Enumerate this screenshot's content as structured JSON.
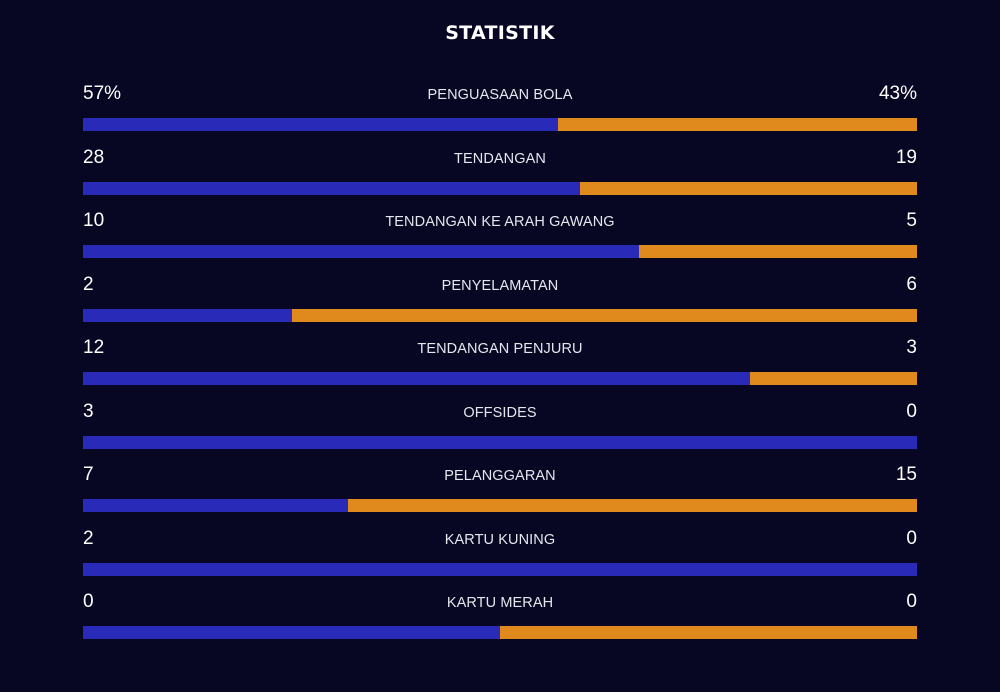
{
  "title": "STATISTIK",
  "colors": {
    "background": "#070723",
    "home": "#2a2ab8",
    "away": "#e08a1e",
    "text": "#ffffff"
  },
  "stats": [
    {
      "label": "PENGUASAAN BOLA",
      "home_display": "57%",
      "away_display": "43%",
      "home": 57,
      "away": 43
    },
    {
      "label": "TENDANGAN",
      "home_display": "28",
      "away_display": "19",
      "home": 28,
      "away": 19
    },
    {
      "label": "TENDANGAN KE ARAH GAWANG",
      "home_display": "10",
      "away_display": "5",
      "home": 10,
      "away": 5
    },
    {
      "label": "PENYELAMATAN",
      "home_display": "2",
      "away_display": "6",
      "home": 2,
      "away": 6
    },
    {
      "label": "TENDANGAN PENJURU",
      "home_display": "12",
      "away_display": "3",
      "home": 12,
      "away": 3
    },
    {
      "label": "OFFSIDES",
      "home_display": "3",
      "away_display": "0",
      "home": 3,
      "away": 0
    },
    {
      "label": "PELANGGARAN",
      "home_display": "7",
      "away_display": "15",
      "home": 7,
      "away": 15
    },
    {
      "label": "KARTU KUNING",
      "home_display": "2",
      "away_display": "0",
      "home": 2,
      "away": 0
    },
    {
      "label": "KARTU MERAH",
      "home_display": "0",
      "away_display": "0",
      "home": 0,
      "away": 0
    }
  ]
}
